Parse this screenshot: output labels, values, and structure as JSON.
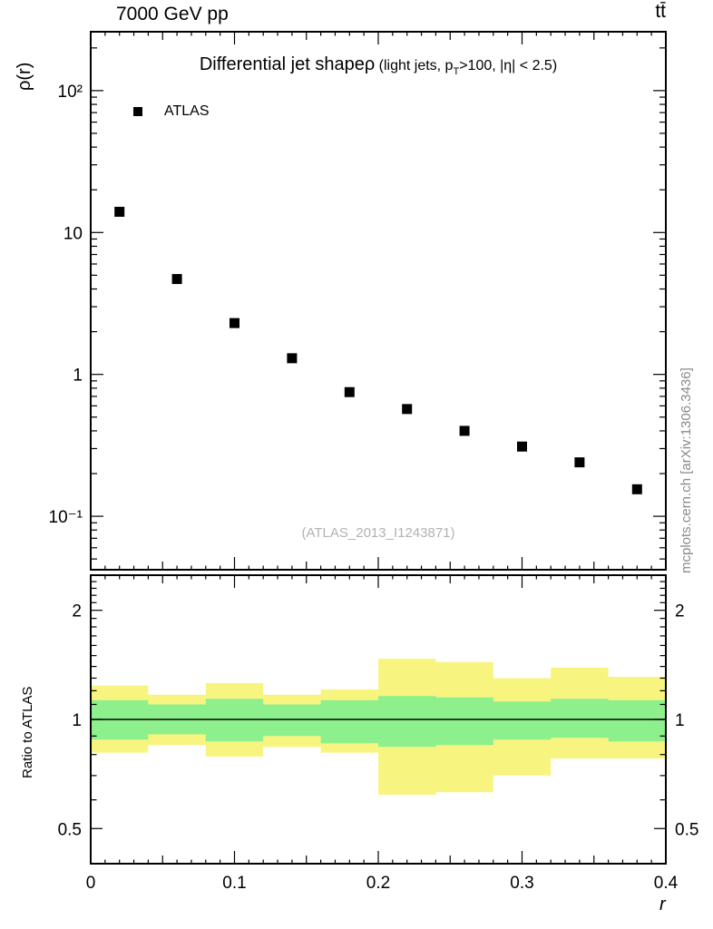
{
  "header": {
    "beam_energy": "7000 GeV pp",
    "process": "tt̄"
  },
  "top_panel": {
    "ylabel": "ρ(r)",
    "title_main": "Differential jet shapeρ",
    "title_detail_pre": " (light jets, p",
    "title_detail_sub": "T",
    "title_detail_post": ">100, |η| < 2.5)",
    "legend_label": "ATLAS",
    "watermark": "(ATLAS_2013_I1243871)",
    "ytick_labels": [
      "10²",
      "10",
      "1",
      "10⁻¹"
    ]
  },
  "ratio_panel": {
    "ylabel": "Ratio to ATLAS",
    "ytick_labels": [
      "2",
      "1",
      "0.5"
    ]
  },
  "x_axis": {
    "tick_labels": [
      "0",
      "0.1",
      "0.2",
      "0.3",
      "0.4"
    ],
    "label": "r"
  },
  "side_note": "mcplots.cern.ch [arXiv:1306.3436]",
  "colors": {
    "marker": "#000000",
    "band_outer": "#f7f580",
    "band_inner": "#8df08c",
    "frame": "#000000",
    "watermark": "#b2b2b2"
  },
  "chart_data": {
    "type": "scatter",
    "title": "Differential jet shapeρ (light jets, pT>100, |η| < 2.5)",
    "xlabel": "r",
    "ylabel": "ρ(r)",
    "xlim": [
      0,
      0.4
    ],
    "x_major_ticks": [
      0,
      0.1,
      0.2,
      0.3,
      0.4
    ],
    "top": {
      "yscale": "log",
      "ylim": [
        0.042,
        260
      ],
      "ytick_values": [
        100,
        10,
        1,
        0.1
      ],
      "series": [
        {
          "name": "ATLAS",
          "marker": "square",
          "x": [
            0.02,
            0.06,
            0.1,
            0.14,
            0.18,
            0.22,
            0.26,
            0.3,
            0.34,
            0.38
          ],
          "y": [
            14.0,
            4.7,
            2.3,
            1.3,
            0.75,
            0.57,
            0.4,
            0.31,
            0.24,
            0.155
          ]
        }
      ]
    },
    "ratio": {
      "yscale": "log",
      "ylim": [
        0.4,
        2.5
      ],
      "ytick_values": [
        2,
        1,
        0.5
      ],
      "reference_line": 1.0,
      "bin_edges": [
        0,
        0.04,
        0.08,
        0.12,
        0.16,
        0.2,
        0.24,
        0.28,
        0.32,
        0.36,
        0.4
      ],
      "outer_band_low": [
        0.81,
        0.85,
        0.79,
        0.84,
        0.81,
        0.62,
        0.63,
        0.7,
        0.78,
        0.78
      ],
      "outer_band_high": [
        1.24,
        1.17,
        1.26,
        1.17,
        1.21,
        1.47,
        1.44,
        1.3,
        1.39,
        1.31
      ],
      "inner_band_low": [
        0.88,
        0.91,
        0.87,
        0.9,
        0.86,
        0.84,
        0.85,
        0.88,
        0.89,
        0.87
      ],
      "inner_band_high": [
        1.13,
        1.1,
        1.14,
        1.1,
        1.13,
        1.16,
        1.15,
        1.12,
        1.14,
        1.13
      ]
    }
  }
}
